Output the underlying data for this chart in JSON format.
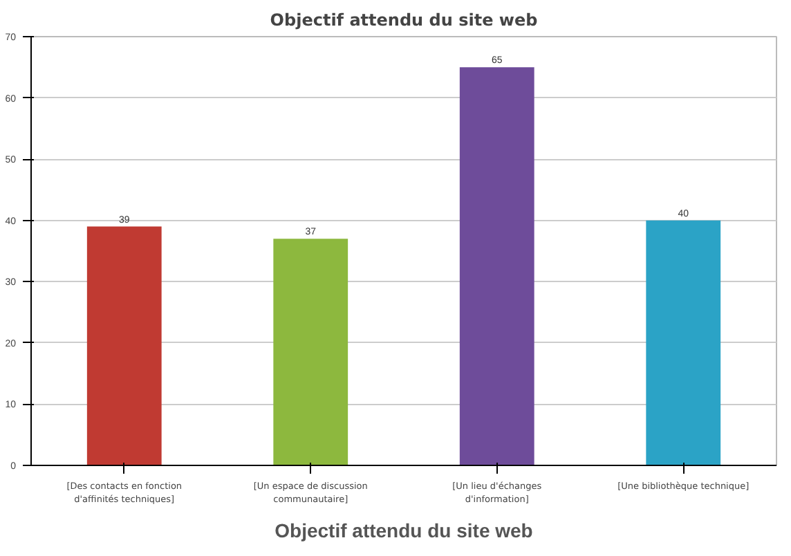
{
  "chart_data": {
    "type": "bar",
    "title": "Objectif attendu du site web",
    "categories": [
      "[Des contacts en fonction d'affinités techniques]",
      "[Un espace de discussion communautaire]",
      "[Un lieu d'échanges d'information]",
      "[Une bibliothèque technique]"
    ],
    "values": [
      39,
      37,
      65,
      40
    ],
    "colors": [
      "#c03a32",
      "#8db83e",
      "#6e4c9a",
      "#2ba3c6"
    ],
    "ylim": [
      0,
      70
    ],
    "yticks": [
      0,
      10,
      20,
      30,
      40,
      50,
      60,
      70
    ],
    "grid": "y",
    "data_labels": true,
    "annotations": [
      "Objectif attendu du site web"
    ]
  }
}
